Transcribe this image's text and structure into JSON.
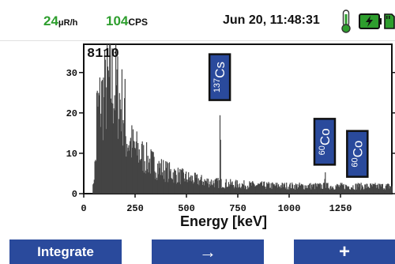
{
  "status": {
    "dose_value": "24",
    "dose_unit": "μR/h",
    "cps_value": "104",
    "cps_unit": "CPS",
    "datetime": "Jun 20, 11:48:31",
    "icons": [
      "thermometer-icon",
      "battery-charging-icon",
      "sd-card-icon"
    ],
    "accent_color": "#2e9e2e"
  },
  "chart_data": {
    "type": "bar",
    "total_counts_label": "8110",
    "xlabel": "Energy [keV]",
    "ylabel": "",
    "xlim": [
      0,
      1500
    ],
    "ylim": [
      0,
      37
    ],
    "x_ticks": [
      "0",
      "250",
      "500",
      "750",
      "1000",
      "1250"
    ],
    "y_ticks": [
      "0",
      "10",
      "20",
      "30"
    ],
    "annotations": [
      {
        "mass": "137",
        "element": "Cs",
        "energy_keV": 662
      },
      {
        "mass": "60",
        "element": "Co",
        "energy_keV": 1173
      },
      {
        "mass": "60",
        "element": "Co",
        "energy_keV": 1332
      }
    ],
    "peaks": [
      {
        "energy_keV": 662,
        "counts": 22
      },
      {
        "energy_keV": 1173,
        "counts": 6
      },
      {
        "energy_keV": 1332,
        "counts": 3
      }
    ],
    "bar_color": "#444444",
    "label_color": "#2a4a9c"
  },
  "buttons": {
    "integrate": "Integrate",
    "arrow": "→",
    "plus": "+"
  }
}
